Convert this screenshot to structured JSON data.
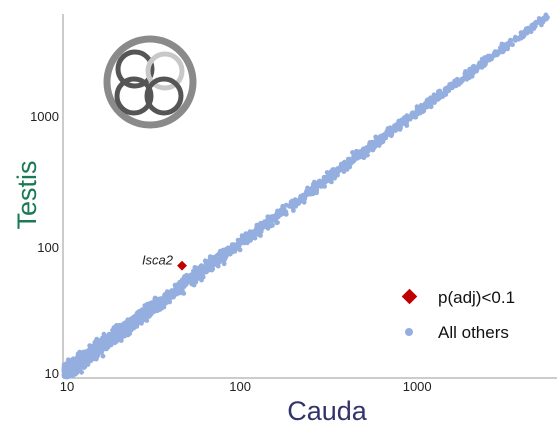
{
  "chart_data": {
    "type": "scatter",
    "xlabel": "Cauda",
    "ylabel": "Testis",
    "x_scale": "log",
    "y_scale": "log",
    "xlim": [
      10,
      6000
    ],
    "ylim": [
      10,
      6000
    ],
    "x_ticks": [
      "10",
      "100",
      "1000"
    ],
    "y_ticks": [
      "10",
      "100",
      "1000"
    ],
    "grid": false,
    "legend_position": "bottom-right",
    "series": [
      {
        "name": "p(adj)<0.1",
        "marker": "diamond",
        "color": "#c00000",
        "points": [
          {
            "x": 47,
            "y": 72,
            "label": "Isca2"
          }
        ]
      },
      {
        "name": "All others",
        "marker": "circle",
        "color": "#95aee0",
        "points": [
          {
            "x": 12,
            "y": 11
          },
          {
            "x": 15,
            "y": 14
          },
          {
            "x": 20,
            "y": 19
          },
          {
            "x": 25,
            "y": 24
          },
          {
            "x": 30,
            "y": 30
          },
          {
            "x": 40,
            "y": 38
          },
          {
            "x": 55,
            "y": 53
          },
          {
            "x": 70,
            "y": 68
          },
          {
            "x": 100,
            "y": 95
          },
          {
            "x": 150,
            "y": 145
          },
          {
            "x": 200,
            "y": 190
          },
          {
            "x": 300,
            "y": 290
          },
          {
            "x": 500,
            "y": 480
          },
          {
            "x": 800,
            "y": 790
          },
          {
            "x": 1200,
            "y": 1180
          },
          {
            "x": 2000,
            "y": 2050
          },
          {
            "x": 3000,
            "y": 3100
          },
          {
            "x": 4500,
            "y": 4700
          }
        ]
      }
    ],
    "series_colors": {
      "ylabel": "#1a7a55",
      "xlabel": "#33336b"
    }
  }
}
